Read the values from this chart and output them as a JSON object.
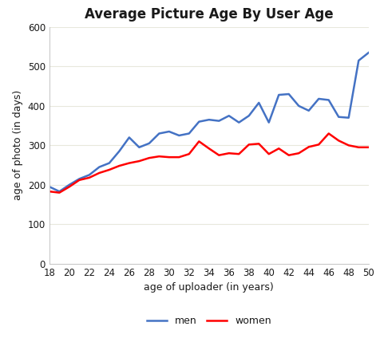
{
  "title": "Average Picture Age By User Age",
  "xlabel": "age of uploader (in years)",
  "ylabel": "age of photo (in days)",
  "x": [
    18,
    19,
    20,
    21,
    22,
    23,
    24,
    25,
    26,
    27,
    28,
    29,
    30,
    31,
    32,
    33,
    34,
    35,
    36,
    37,
    38,
    39,
    40,
    41,
    42,
    43,
    44,
    45,
    46,
    47,
    48,
    49,
    50
  ],
  "men": [
    195,
    183,
    200,
    215,
    225,
    245,
    255,
    285,
    320,
    295,
    305,
    330,
    335,
    325,
    330,
    360,
    365,
    362,
    375,
    358,
    375,
    408,
    358,
    428,
    430,
    400,
    388,
    418,
    415,
    372,
    370,
    515,
    535
  ],
  "women": [
    183,
    180,
    195,
    212,
    218,
    230,
    238,
    248,
    255,
    260,
    268,
    272,
    270,
    270,
    278,
    310,
    292,
    275,
    280,
    278,
    302,
    304,
    278,
    292,
    275,
    280,
    296,
    302,
    330,
    312,
    300,
    295,
    295
  ],
  "men_color": "#4472C4",
  "women_color": "#FF0000",
  "ylim": [
    0,
    600
  ],
  "yticks": [
    0,
    100,
    200,
    300,
    400,
    500,
    600
  ],
  "xticks": [
    18,
    20,
    22,
    24,
    26,
    28,
    30,
    32,
    34,
    36,
    38,
    40,
    42,
    44,
    46,
    48,
    50
  ],
  "bg_color": "#FFFFFF",
  "grid_color": "#E8E8DC",
  "line_width": 1.8,
  "title_fontsize": 12,
  "label_fontsize": 9,
  "tick_fontsize": 8.5,
  "legend_fontsize": 9,
  "text_color": "#1A1A1A"
}
